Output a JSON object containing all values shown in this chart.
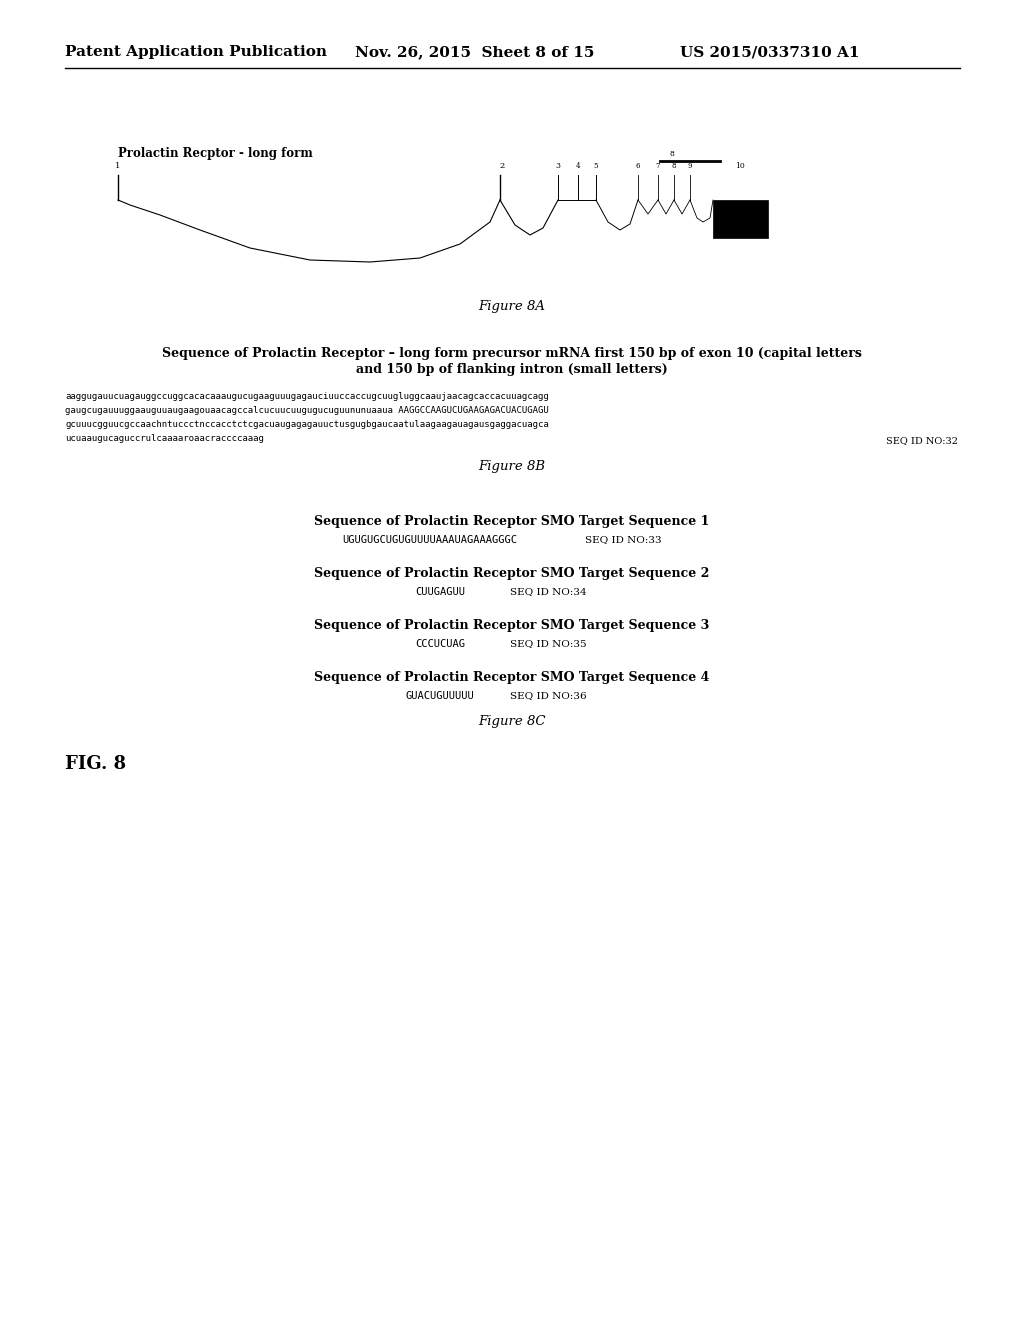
{
  "bg_color": "#ffffff",
  "header_left": "Patent Application Publication",
  "header_center": "Nov. 26, 2015  Sheet 8 of 15",
  "header_right": "US 2015/0337310 A1",
  "fig8a_title": "Prolactin Recptor - long form",
  "fig8a_caption": "Figure 8A",
  "fig8b_title_line1": "Sequence of Prolactin Receptor – long form precursor mRNA first 150 bp of exon 10 (capital letters",
  "fig8b_title_line2": "and 150 bp of flanking intron (small letters)",
  "fig8b_seq_line1": "aaggugauucuagauggccuggcacacaaaugucugaaguuugagauciuuccaccugcuugluggcaaujaacagcaccacuuagcagg",
  "fig8b_seq_line2": "gaugcugauuuggaauguuaugaagouaacagccalcucuucuugugucuguununuaaua AAGGCCAAGUCUGAAGAGACUACUGAGU",
  "fig8b_seq_line3": "gcuuucgguucgccaachntuccctnccacctctcgacuaugagagauuctusgugbgaucaatulaagaagauagausgaggacuagca",
  "fig8b_seq_line4": "ucuaaugucaguccrulcaaaaroaacraccccaaag",
  "fig8b_seq_id": "SEQ ID NO:32",
  "fig8b_caption": "Figure 8B",
  "fig8c_caption": "Figure 8C",
  "smo1_title": "Sequence of Prolactin Receptor SMO Target Sequence 1",
  "smo1_seq": "UGUGUGCUGUGUUUUAAAUAGAAAGGGC",
  "smo1_id": "SEQ ID NO:33",
  "smo2_title": "Sequence of Prolactin Receptor SMO Target Sequence 2",
  "smo2_seq": "CUUGAGUU",
  "smo2_id": "SEQ ID NO:34",
  "smo3_title": "Sequence of Prolactin Receptor SMO Target Sequence 3",
  "smo3_seq": "CCCUCUAG",
  "smo3_id": "SEQ ID NO:35",
  "smo4_title": "Sequence of Prolactin Receptor SMO Target Sequence 4",
  "smo4_seq": "GUACUGUUUUU",
  "smo4_id": "SEQ ID NO:36",
  "fig_label": "FIG. 8"
}
